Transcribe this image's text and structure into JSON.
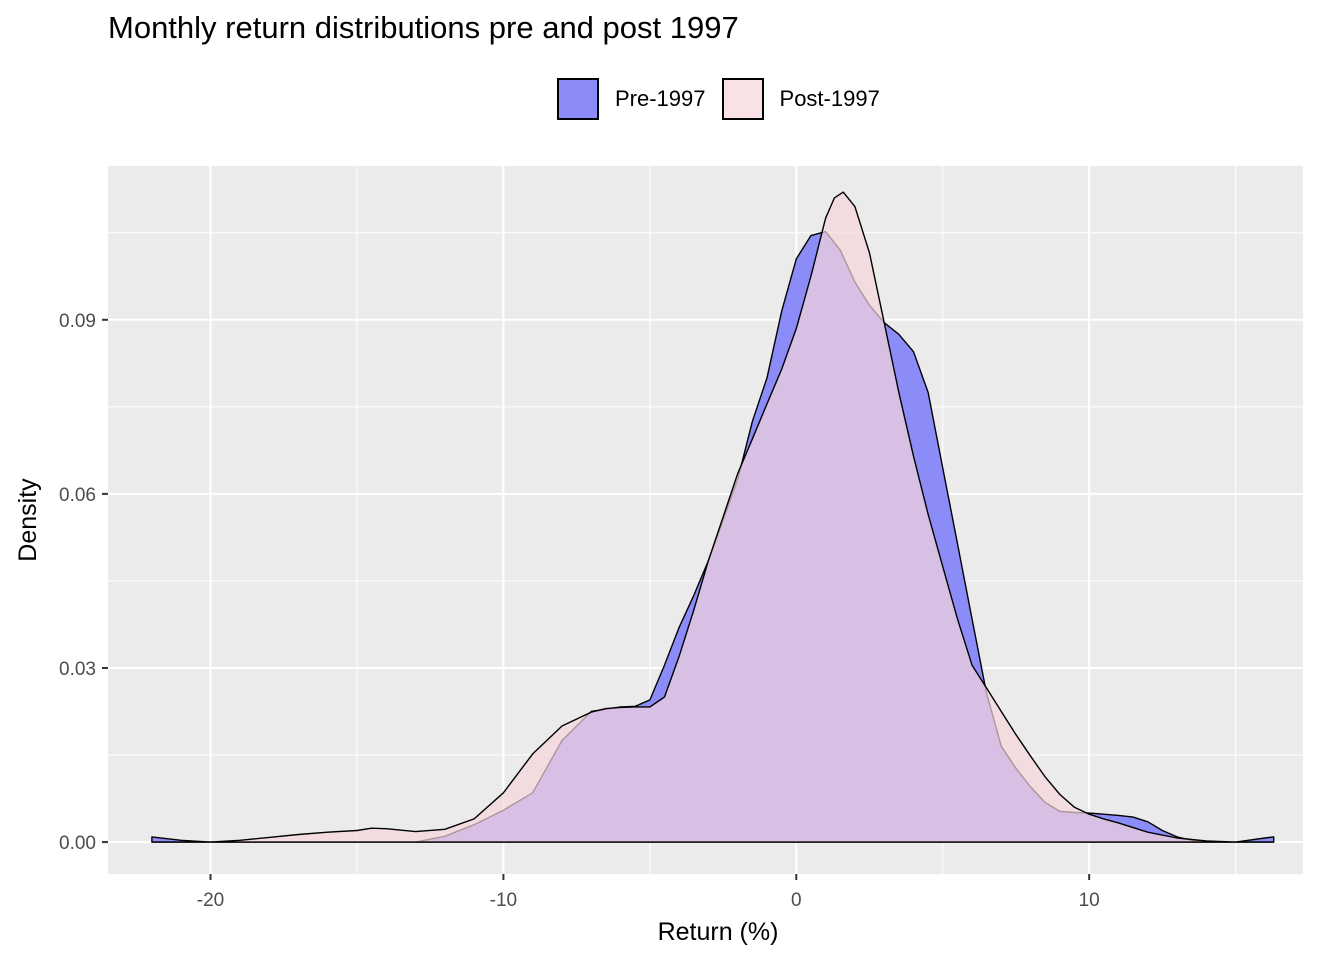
{
  "chart_data": {
    "type": "area",
    "title": "Monthly return distributions pre and post 1997",
    "xlabel": "Return (%)",
    "ylabel": "Density",
    "xlim": [
      -23.5,
      17.3
    ],
    "ylim": [
      -0.0055,
      0.1165
    ],
    "xticks": [
      -20,
      -10,
      0,
      10
    ],
    "xtick_labels": [
      "-20",
      "-10",
      "0",
      "10"
    ],
    "yticks": [
      0,
      0.03,
      0.06,
      0.09
    ],
    "ytick_labels": [
      "0.00",
      "0.03",
      "0.06",
      "0.09"
    ],
    "grid": true,
    "legend_position": "top",
    "legend_entries": [
      "Pre-1997",
      "Post-1997"
    ],
    "series": [
      {
        "name": "Pre-1997",
        "fill": "#8c8cf8",
        "x": [
          -22,
          -21,
          -20,
          -19,
          -18,
          -16,
          -14,
          -13,
          -12,
          -11,
          -10,
          -9,
          -8,
          -7,
          -6,
          -5.5,
          -5,
          -4.5,
          -4,
          -3.5,
          -3,
          -2.5,
          -2,
          -1.5,
          -1,
          -0.5,
          0,
          0.5,
          1,
          1.5,
          2,
          2.5,
          3,
          3.5,
          4,
          4.5,
          5,
          5.5,
          6,
          6.5,
          7,
          7.5,
          8,
          8.5,
          9,
          9.5,
          10,
          10.5,
          11,
          11.5,
          12,
          12.5,
          13,
          13.5,
          14,
          15,
          16,
          16.3
        ],
        "y": [
          0.0009,
          0.0003,
          0.0,
          0.0,
          0.0,
          0.0,
          0.0,
          0.0,
          0.001,
          0.003,
          0.0055,
          0.0085,
          0.0175,
          0.0225,
          0.0233,
          0.0234,
          0.0245,
          0.0305,
          0.037,
          0.0425,
          0.0485,
          0.0555,
          0.0625,
          0.0725,
          0.08,
          0.0915,
          0.1005,
          0.1045,
          0.1052,
          0.102,
          0.0965,
          0.0925,
          0.0895,
          0.0875,
          0.0845,
          0.0775,
          0.0645,
          0.0515,
          0.0385,
          0.0255,
          0.0165,
          0.0127,
          0.0095,
          0.0068,
          0.0053,
          0.0051,
          0.005,
          0.0048,
          0.0046,
          0.0043,
          0.0035,
          0.002,
          0.0009,
          0.0003,
          0.0,
          0.0,
          0.0007,
          0.0009
        ]
      },
      {
        "name": "Post-1997",
        "fill": "rgba(246,214,218,0.7)",
        "x": [
          -22,
          -20,
          -19,
          -18,
          -17,
          -16,
          -15,
          -14.5,
          -14,
          -13,
          -12,
          -11,
          -10,
          -9,
          -8,
          -7,
          -6.5,
          -6,
          -5.5,
          -5,
          -4.5,
          -4,
          -3.5,
          -3,
          -2.5,
          -2,
          -1.5,
          -1,
          -0.5,
          0,
          0.5,
          1,
          1.3,
          1.6,
          2,
          2.5,
          3,
          3.5,
          4,
          4.5,
          5,
          5.5,
          6,
          6.5,
          7,
          7.5,
          8,
          8.5,
          9,
          9.5,
          10,
          10.5,
          11,
          11.5,
          12,
          13,
          14,
          15,
          16,
          16.3
        ],
        "y": [
          0.0,
          0.0,
          0.0003,
          0.0008,
          0.0013,
          0.0017,
          0.002,
          0.0024,
          0.0023,
          0.0018,
          0.0022,
          0.004,
          0.0085,
          0.0152,
          0.02,
          0.0224,
          0.023,
          0.0232,
          0.0233,
          0.0233,
          0.025,
          0.032,
          0.04,
          0.0485,
          0.056,
          0.0635,
          0.0695,
          0.0755,
          0.0815,
          0.0885,
          0.0975,
          0.1075,
          0.111,
          0.112,
          0.1095,
          0.1015,
          0.0895,
          0.0775,
          0.0665,
          0.0565,
          0.0475,
          0.0385,
          0.0305,
          0.0265,
          0.0225,
          0.0185,
          0.0148,
          0.0112,
          0.0082,
          0.006,
          0.0048,
          0.004,
          0.0033,
          0.0025,
          0.0017,
          0.0007,
          0.0002,
          0.0,
          0.0,
          0.0
        ]
      }
    ]
  }
}
